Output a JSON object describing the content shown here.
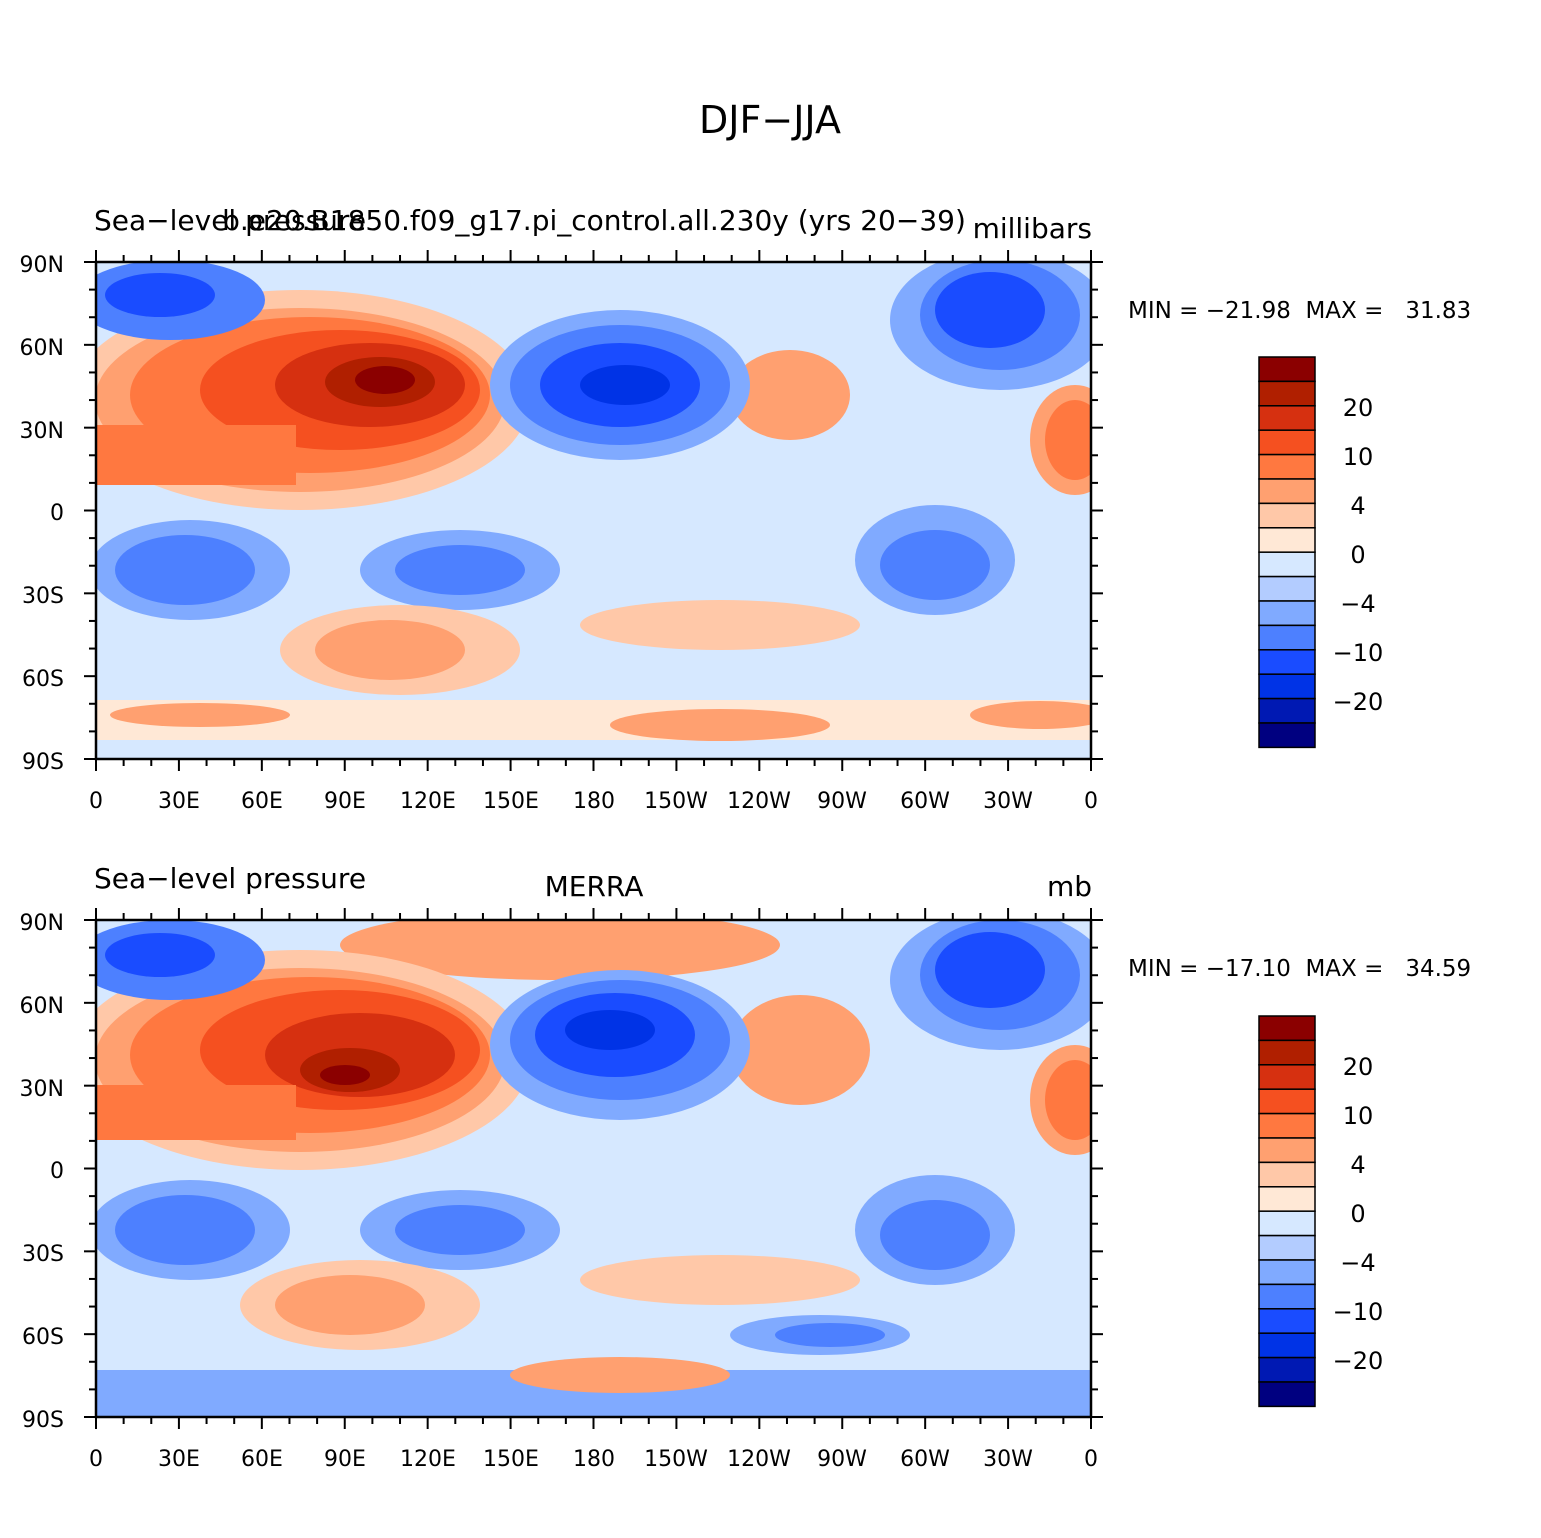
{
  "title": "DJF−JJA",
  "colors": {
    "levels": [
      "#000080",
      "#0019b3",
      "#0033e6",
      "#1a4cff",
      "#4d80ff",
      "#80aaff",
      "#b3ccff",
      "#d6e8ff",
      "#ffe8d6",
      "#ffc8a8",
      "#ffa070",
      "#ff7840",
      "#f55020",
      "#d63010",
      "#b01f00",
      "#8b0000"
    ],
    "coastline": "#000000"
  },
  "tick_labels": {
    "lat": [
      "90N",
      "60N",
      "30N",
      "0",
      "30S",
      "60S",
      "90S"
    ],
    "lon": [
      "0",
      "30E",
      "60E",
      "90E",
      "120E",
      "150E",
      "180",
      "150W",
      "120W",
      "90W",
      "60W",
      "30W",
      "0"
    ]
  },
  "panels": [
    {
      "left_title": "Sea−level pressure",
      "center_title": "b.e20.B1850.f09_g17.pi_control.all.230y (yrs 20−39)",
      "right_title": "millibars",
      "stats": "MIN = −21.98  MAX =   31.83",
      "colorbar_labels": [
        "20",
        "10",
        "4",
        "0",
        "−4",
        "−10",
        "−20"
      ]
    },
    {
      "left_title": "Sea−level pressure",
      "center_title": "MERRA",
      "right_title": "mb",
      "stats": "MIN = −17.10  MAX =   34.59",
      "colorbar_labels": [
        "20",
        "10",
        "4",
        "0",
        "−4",
        "−10",
        "−20"
      ]
    }
  ]
}
